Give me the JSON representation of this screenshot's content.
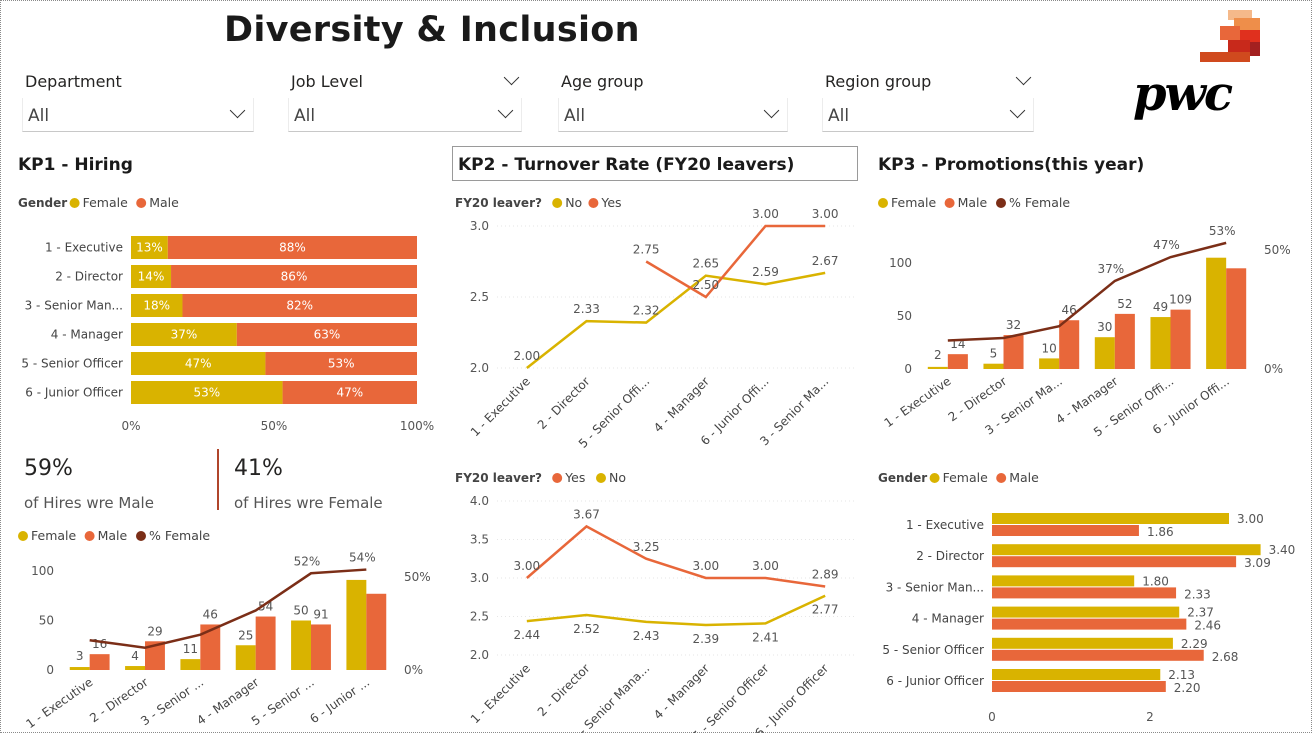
{
  "title": "Diversity & Inclusion",
  "logo_text": "pwc",
  "colors": {
    "female": "#D9B300",
    "male": "#E8673A",
    "pct_female": "#7B2E17",
    "bar_label": "#ffffff"
  },
  "slicers": [
    {
      "label": "Department",
      "value": "All"
    },
    {
      "label": "Job Level",
      "value": "All"
    },
    {
      "label": "Age group",
      "value": "All"
    },
    {
      "label": "Region group",
      "value": "All"
    }
  ],
  "sections": {
    "kp1": "KP1 - Hiring",
    "kp2": "KP2 - Turnover Rate (FY20 leavers)",
    "kp3": "KP3 - Promotions(this year)"
  },
  "kpis": {
    "male_pct": "59%",
    "male_text": "of Hires wre Male",
    "female_pct": "41%",
    "female_text": "of Hires wre Female"
  },
  "chart_data": [
    {
      "id": "hiring-gender-stacked",
      "type": "bar",
      "orientation": "horizontal",
      "stacked_percent": true,
      "legend_title": "Gender",
      "legend": [
        "Female",
        "Male"
      ],
      "categories": [
        "1 - Executive",
        "2 - Director",
        "3 - Senior Man...",
        "4 - Manager",
        "5 - Senior Officer",
        "6 - Junior Officer"
      ],
      "series": [
        {
          "name": "Female",
          "values": [
            13,
            14,
            18,
            37,
            47,
            53
          ],
          "labels": [
            "13%",
            "14%",
            "18%",
            "37%",
            "47%",
            "53%"
          ]
        },
        {
          "name": "Male",
          "values": [
            88,
            86,
            82,
            63,
            53,
            47
          ],
          "labels": [
            "88%",
            "86%",
            "82%",
            "63%",
            "53%",
            "47%"
          ]
        }
      ],
      "xticks": [
        "0%",
        "50%",
        "100%"
      ]
    },
    {
      "id": "hiring-combo",
      "type": "bar",
      "legend": [
        "Female",
        "Male",
        "% Female"
      ],
      "categories": [
        "1 - Executive",
        "2 - Director",
        "3 - Senior ...",
        "4 - Manager",
        "5 - Senior ...",
        "6 - Junior ..."
      ],
      "series": [
        {
          "name": "Female",
          "values": [
            3,
            4,
            11,
            25,
            50,
            91
          ]
        },
        {
          "name": "Male",
          "values": [
            16,
            29,
            46,
            54,
            46,
            77
          ]
        },
        {
          "name": "% Female",
          "type": "line",
          "axis": "right",
          "values": [
            16,
            12,
            19,
            32,
            52,
            54
          ]
        }
      ],
      "bar_labels": [
        "3",
        "16",
        "4",
        "29",
        "11",
        "46",
        "25",
        "54",
        "50",
        "91"
      ],
      "pct_labels": [
        "52%",
        "54%"
      ],
      "ylim": [
        0,
        100
      ],
      "yticks": [
        "0",
        "50",
        "100"
      ],
      "y2ticks": [
        "0%",
        "50%"
      ]
    },
    {
      "id": "turnover-rate-top",
      "type": "line",
      "legend_title": "FY20 leaver?",
      "legend": [
        "No",
        "Yes"
      ],
      "categories": [
        "1 - Executive",
        "2 - Director",
        "5 - Senior Offi...",
        "4 - Manager",
        "6 - Junior Offi...",
        "3 - Senior Ma..."
      ],
      "series": [
        {
          "name": "No",
          "values": [
            2.0,
            2.33,
            2.32,
            2.65,
            2.59,
            2.67
          ]
        },
        {
          "name": "Yes",
          "values": [
            null,
            null,
            2.75,
            2.5,
            3.0,
            3.0
          ]
        }
      ],
      "ylim": [
        2.0,
        3.0
      ],
      "yticks": [
        "2.0",
        "2.5",
        "3.0"
      ]
    },
    {
      "id": "turnover-rate-bottom",
      "type": "line",
      "legend_title": "FY20 leaver?",
      "legend": [
        "Yes",
        "No"
      ],
      "categories": [
        "1 - Executive",
        "2 - Director",
        "3 - Senior Mana...",
        "4 - Manager",
        "5 - Senior Officer",
        "6 - Junior Officer"
      ],
      "series": [
        {
          "name": "Yes",
          "values": [
            3.0,
            3.67,
            3.25,
            3.0,
            3.0,
            2.89
          ]
        },
        {
          "name": "No",
          "values": [
            2.44,
            2.52,
            2.43,
            2.39,
            2.41,
            2.77
          ]
        }
      ],
      "ylim": [
        2.0,
        4.0
      ],
      "yticks": [
        "2.0",
        "2.5",
        "3.0",
        "3.5",
        "4.0"
      ]
    },
    {
      "id": "promotions-combo",
      "type": "bar",
      "legend": [
        "Female",
        "Male",
        "% Female"
      ],
      "categories": [
        "1 - Executive",
        "2 - Director",
        "3 - Senior Ma...",
        "4 - Manager",
        "5 - Senior Offi...",
        "6 - Junior Offi..."
      ],
      "series": [
        {
          "name": "Female",
          "values": [
            2,
            5,
            10,
            30,
            49,
            109
          ]
        },
        {
          "name": "Male",
          "values": [
            14,
            32,
            46,
            52,
            56,
            95
          ]
        },
        {
          "name": "% Female",
          "type": "line",
          "axis": "right",
          "values": [
            12,
            13,
            18,
            37,
            47,
            53
          ]
        }
      ],
      "bar_labels": [
        "2",
        "14",
        "5",
        "32",
        "10",
        "46",
        "30",
        "52",
        "49",
        "109"
      ],
      "pct_labels": [
        "37%",
        "47%",
        "53%"
      ],
      "ylim": [
        0,
        100
      ],
      "yticks": [
        "0",
        "50",
        "100"
      ],
      "y2ticks": [
        "0%",
        "50%"
      ]
    },
    {
      "id": "promotions-gender-hbar",
      "type": "bar",
      "orientation": "horizontal",
      "legend_title": "Gender",
      "legend": [
        "Female",
        "Male"
      ],
      "categories": [
        "1 - Executive",
        "2 - Director",
        "3 - Senior Man...",
        "4 - Manager",
        "5 - Senior Officer",
        "6 - Junior Officer"
      ],
      "series": [
        {
          "name": "Female",
          "values": [
            3.0,
            3.4,
            1.8,
            2.37,
            2.29,
            2.13
          ],
          "labels": [
            "3.00",
            "3.40",
            "1.80",
            "2.37",
            "2.29",
            "2.13"
          ]
        },
        {
          "name": "Male",
          "values": [
            1.86,
            3.09,
            2.33,
            2.46,
            2.68,
            2.2
          ],
          "labels": [
            "1.86",
            "3.09",
            "2.33",
            "2.46",
            "2.68",
            "2.20"
          ]
        }
      ],
      "xticks": [
        "0",
        "2"
      ]
    }
  ]
}
